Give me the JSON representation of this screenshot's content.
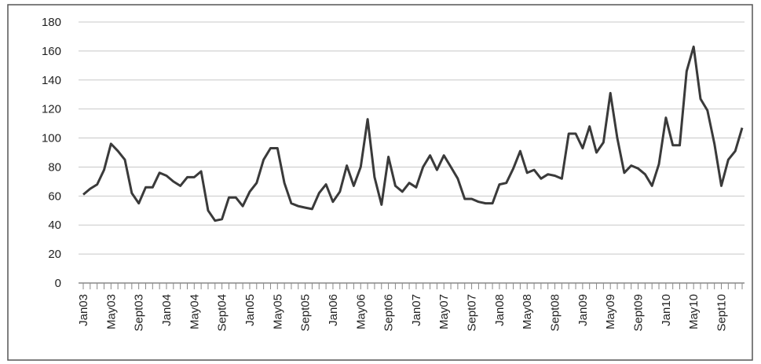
{
  "chart_data": {
    "type": "line",
    "color": "#3a3a3a",
    "grid": true,
    "ylim": [
      0,
      180
    ],
    "yticks": [
      0,
      20,
      40,
      60,
      80,
      100,
      120,
      140,
      160,
      180
    ],
    "categories": [
      "Jan03",
      null,
      null,
      null,
      "May03",
      null,
      null,
      null,
      "Sept03",
      null,
      null,
      null,
      "Jan04",
      null,
      null,
      null,
      "May04",
      null,
      null,
      null,
      "Sept04",
      null,
      null,
      null,
      "Jan05",
      null,
      null,
      null,
      "May05",
      null,
      null,
      null,
      "Sept05",
      null,
      null,
      null,
      "Jan06",
      null,
      null,
      null,
      "May06",
      null,
      null,
      null,
      "Sept06",
      null,
      null,
      null,
      "Jan07",
      null,
      null,
      null,
      "May07",
      null,
      null,
      null,
      "Sept07",
      null,
      null,
      null,
      "Jan08",
      null,
      null,
      null,
      "May08",
      null,
      null,
      null,
      "Sept08",
      null,
      null,
      null,
      "Jan09",
      null,
      null,
      null,
      "May09",
      null,
      null,
      null,
      "Sept09",
      null,
      null,
      null,
      "Jan10",
      null,
      null,
      null,
      "May10",
      null,
      null,
      null,
      "Sept10",
      null,
      null,
      null
    ],
    "values": [
      61,
      65,
      68,
      78,
      96,
      91,
      85,
      62,
      55,
      66,
      66,
      76,
      74,
      70,
      67,
      73,
      73,
      77,
      50,
      43,
      44,
      59,
      59,
      53,
      63,
      69,
      85,
      93,
      93,
      69,
      55,
      53,
      52,
      51,
      62,
      68,
      56,
      63,
      81,
      67,
      80,
      113,
      73,
      54,
      87,
      67,
      63,
      69,
      66,
      80,
      88,
      78,
      88,
      80,
      72,
      58,
      58,
      56,
      55,
      55,
      68,
      69,
      79,
      91,
      76,
      78,
      72,
      75,
      74,
      72,
      103,
      103,
      93,
      108,
      90,
      97,
      131,
      100,
      76,
      81,
      79,
      75,
      67,
      82,
      114,
      95,
      95,
      146,
      163,
      127,
      119,
      96,
      67,
      85,
      91,
      107
    ]
  }
}
